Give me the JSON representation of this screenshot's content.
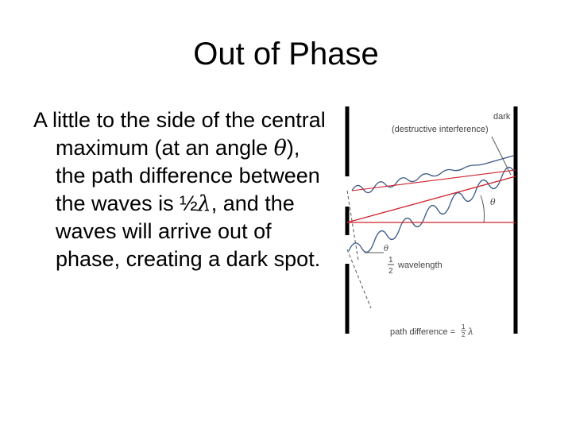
{
  "slide": {
    "title": "Out of Phase",
    "body": {
      "p1": "A little to the side of the central maximum (at an angle ",
      "theta": "θ",
      "p2": "), the path difference between the waves is ",
      "half": "½",
      "lambda": "λ",
      "p3": ", and the waves will arrive out of phase, creating a dark spot."
    }
  },
  "diagram": {
    "dark_label": "dark",
    "destructive_label": "(destructive interference)",
    "theta_symbol": "θ",
    "frac_num": "1",
    "frac_den": "2",
    "wavelength_label": "wavelength",
    "path_diff_label": "path difference =",
    "lambda_symbol": "λ",
    "colors": {
      "rays": "#d0202a",
      "waves": "#3b5a86",
      "walls": "#000000",
      "labels": "#444444"
    }
  }
}
